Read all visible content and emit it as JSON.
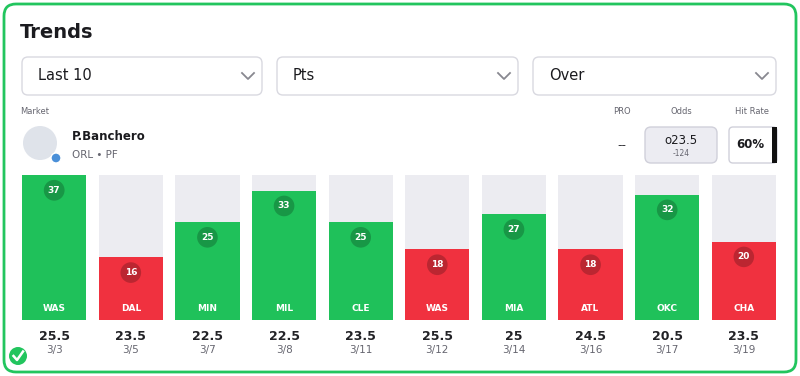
{
  "header": {
    "title": "Trends",
    "filters": [
      "Last 10",
      "Pts",
      "Over"
    ],
    "market_label": "Market",
    "columns": [
      "PRO",
      "Odds",
      "Hit Rate"
    ],
    "player": {
      "name": "P.Banchero",
      "team": "ORL • PF"
    },
    "pro": "--",
    "odds": {
      "line": "o23.5",
      "price": "-124"
    },
    "hit_rate": "60%"
  },
  "chart_data": {
    "type": "bar",
    "categories": [
      "WAS",
      "DAL",
      "MIN",
      "MIL",
      "CLE",
      "WAS",
      "MIA",
      "ATL",
      "OKC",
      "CHA"
    ],
    "values": [
      37,
      16,
      25,
      33,
      25,
      18,
      27,
      18,
      32,
      20
    ],
    "lines": [
      25.5,
      23.5,
      22.5,
      22.5,
      23.5,
      25.5,
      25,
      24.5,
      20.5,
      23.5
    ],
    "dates": [
      "3/3",
      "3/5",
      "3/7",
      "3/8",
      "3/11",
      "3/12",
      "3/14",
      "3/16",
      "3/17",
      "3/19"
    ],
    "colors": [
      "#1fc15a",
      "#f0313f",
      "#1fc15a",
      "#1fc15a",
      "#1fc15a",
      "#f0313f",
      "#1fc15a",
      "#f0313f",
      "#1fc15a",
      "#f0313f"
    ],
    "ylim": [
      0,
      37
    ],
    "yticks": [],
    "data_labels": true,
    "tick_labels": false
  }
}
